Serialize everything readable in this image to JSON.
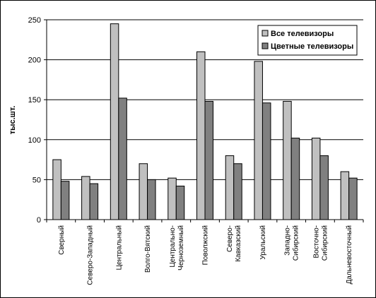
{
  "chart_data": {
    "type": "bar",
    "ylabel": "тыс.шт.",
    "xlabel": "",
    "ylim": [
      0,
      250
    ],
    "yticks": [
      0,
      50,
      100,
      150,
      200,
      250
    ],
    "grid": true,
    "legend_position": "top-right",
    "categories": [
      "Сверный",
      "Северо-Западный",
      "Центральный",
      "Волго-Вятский",
      "Центрально-Черноземный",
      "Поволжский",
      "Северо-Кавказский",
      "Уральский",
      "Западно-Сибирский",
      "Восточно-Сибирский",
      "Дальневосточный"
    ],
    "category_lines": [
      [
        "Сверный"
      ],
      [
        "Северо-Западный"
      ],
      [
        "Центральный"
      ],
      [
        "Волго-Вятский"
      ],
      [
        "Центрально-",
        "Черноземный"
      ],
      [
        "Поволжский"
      ],
      [
        "Северо-",
        "Кавказский"
      ],
      [
        "Уральский"
      ],
      [
        "Западно-",
        "Сибирский"
      ],
      [
        "Восточно-",
        "Сибирский"
      ],
      [
        "Дальневосточный"
      ]
    ],
    "series": [
      {
        "name": "Все телевизоры",
        "color": "#c0c0c0",
        "values": [
          75,
          54,
          245,
          70,
          52,
          210,
          80,
          198,
          148,
          102,
          60
        ]
      },
      {
        "name": "Цветные телевизоры",
        "color": "#808080",
        "values": [
          48,
          45,
          152,
          50,
          42,
          148,
          70,
          146,
          102,
          80,
          52
        ]
      }
    ]
  }
}
